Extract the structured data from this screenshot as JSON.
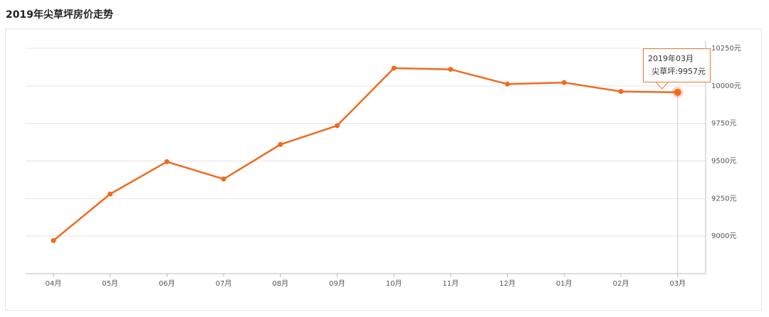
{
  "page": {
    "title": "2019年尖草坪房价走势"
  },
  "chart_data": {
    "type": "line",
    "title": "2019年尖草坪房价走势",
    "categories": [
      "04月",
      "05月",
      "06月",
      "07月",
      "08月",
      "09月",
      "10月",
      "11月",
      "12月",
      "01月",
      "02月",
      "03月"
    ],
    "series": [
      {
        "name": "尖草坪",
        "values": [
          8970,
          9280,
          9495,
          9380,
          9610,
          9735,
          10118,
          10110,
          10012,
          10022,
          9963,
          9957
        ]
      }
    ],
    "y_ticks": [
      9000,
      9250,
      9500,
      9750,
      10000,
      10250
    ],
    "y_unit": "元",
    "ylim": [
      8750,
      10250
    ],
    "xlabel": "",
    "ylabel": "",
    "grid": true,
    "y_axis_position": "right",
    "line_color": "#f06a1e",
    "tooltip": {
      "title": "2019年03月",
      "label": "尖草坪:9957元"
    }
  }
}
